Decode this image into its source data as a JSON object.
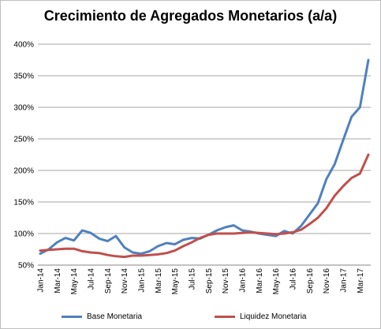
{
  "chart_data": {
    "type": "line",
    "title": "Crecimiento de Agregados Monetarios (a/a)",
    "xlabel": "",
    "ylabel": "",
    "ylim": [
      50,
      400
    ],
    "yticks": [
      "50%",
      "100%",
      "150%",
      "200%",
      "250%",
      "300%",
      "350%",
      "400%"
    ],
    "grid": true,
    "legend_position": "bottom",
    "x": [
      "Jan-14",
      "Feb-14",
      "Mar-14",
      "Apr-14",
      "May-14",
      "Jun-14",
      "Jul-14",
      "Aug-14",
      "Sep-14",
      "Oct-14",
      "Nov-14",
      "Dec-14",
      "Jan-15",
      "Feb-15",
      "Mar-15",
      "Apr-15",
      "May-15",
      "Jun-15",
      "Jul-15",
      "Aug-15",
      "Sep-15",
      "Oct-15",
      "Nov-15",
      "Dec-15",
      "Jan-16",
      "Feb-16",
      "Mar-16",
      "Apr-16",
      "May-16",
      "Jun-16",
      "Jul-16",
      "Aug-16",
      "Sep-16",
      "Oct-16",
      "Nov-16",
      "Dec-16",
      "Jan-17",
      "Feb-17",
      "Mar-17",
      "Apr-17"
    ],
    "xtick_labels": [
      "Jan-14",
      "Mar-14",
      "May-14",
      "Jul-14",
      "Sep-14",
      "Nov-14",
      "Jan-15",
      "Mar-15",
      "May-15",
      "Jul-15",
      "Sep-15",
      "Nov-15",
      "Jan-16",
      "Mar-16",
      "May-16",
      "Jul-16",
      "Sep-16",
      "Nov-16",
      "Jan-17",
      "Mar-17"
    ],
    "series": [
      {
        "name": "Base Monetaria",
        "color": "#4f81bd",
        "values": [
          68,
          75,
          86,
          93,
          89,
          105,
          101,
          92,
          88,
          96,
          78,
          70,
          68,
          72,
          80,
          85,
          83,
          90,
          93,
          92,
          98,
          105,
          110,
          113,
          105,
          103,
          100,
          98,
          96,
          104,
          100,
          112,
          130,
          148,
          186,
          210,
          248,
          285,
          300,
          375
        ]
      },
      {
        "name": "Liquidez Monetaria",
        "color": "#c0504d",
        "values": [
          73,
          74,
          75,
          76,
          76,
          72,
          70,
          69,
          66,
          64,
          63,
          65,
          65,
          66,
          67,
          69,
          73,
          80,
          86,
          93,
          98,
          100,
          100,
          100,
          101,
          102,
          101,
          100,
          99,
          100,
          102,
          106,
          115,
          125,
          140,
          160,
          175,
          188,
          195,
          225
        ]
      }
    ]
  }
}
